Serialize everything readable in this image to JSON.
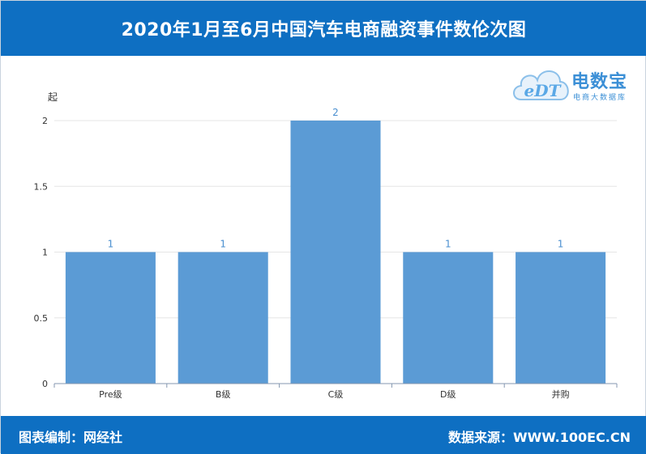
{
  "header": {
    "title": "2020年1月至6月中国汽车电商融资事件数伦次图"
  },
  "logo": {
    "name": "电数宝",
    "sub": "电商大数据库",
    "mark": "eDT",
    "icon": "cloud-logo-icon"
  },
  "footer": {
    "left": "图表编制：网经社",
    "right": "数据来源：WWW.100EC.CN"
  },
  "colors": {
    "header": "#0e6fc2",
    "bar": "#5b9bd5",
    "label": "#4a8fd0",
    "axis": "#8497b0"
  },
  "chart_data": {
    "type": "bar",
    "title": "",
    "xlabel": "",
    "ylabel": "起",
    "categories": [
      "Pre级",
      "B级",
      "C级",
      "D级",
      "并购"
    ],
    "values": [
      1,
      1,
      2,
      1,
      1
    ],
    "data_labels": [
      "1",
      "1",
      "2",
      "1",
      "1"
    ],
    "yticks": [
      "0",
      "0.5",
      "1",
      "1.5",
      "2"
    ],
    "ylim": [
      0,
      2
    ],
    "grid": true,
    "legend": "none"
  }
}
